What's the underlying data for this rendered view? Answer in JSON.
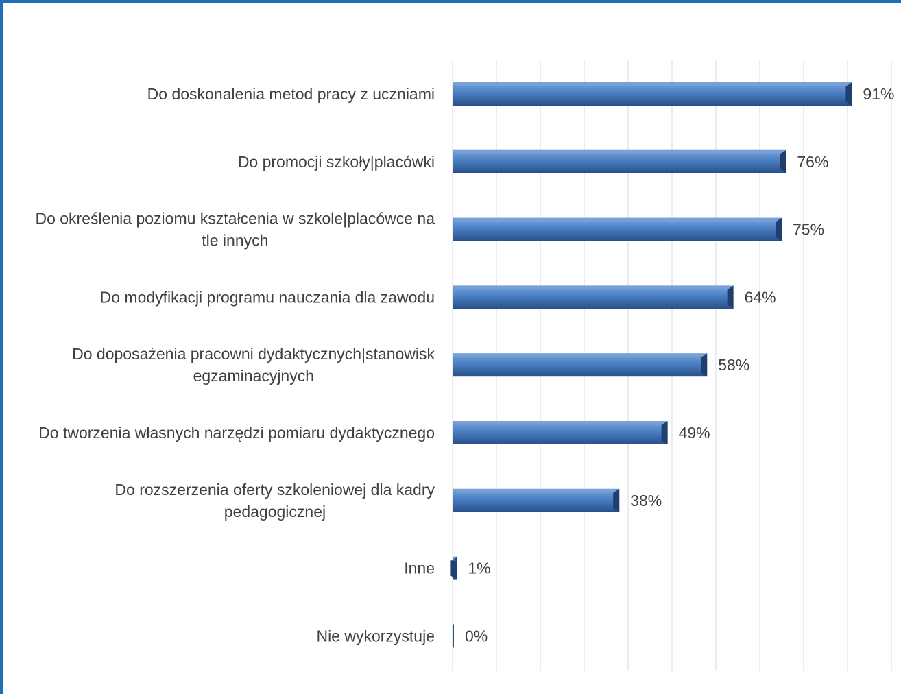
{
  "chart_data": {
    "type": "bar",
    "orientation": "horizontal",
    "categories": [
      [
        "Do doskonalenia metod pracy z uczniami"
      ],
      [
        "Do promocji szkoły|placówki"
      ],
      [
        "Do określenia poziomu kształcenia w szkole|placówce na",
        "tle innych"
      ],
      [
        "Do modyfikacji programu nauczania dla zawodu"
      ],
      [
        "Do doposażenia pracowni dydaktycznych|stanowisk",
        "egzaminacyjnych"
      ],
      [
        "Do tworzenia własnych narzędzi pomiaru dydaktycznego"
      ],
      [
        "Do rozszerzenia oferty szkoleniowej dla kadry",
        "pedagogicznej"
      ],
      [
        "Inne"
      ],
      [
        "Nie wykorzystuje"
      ]
    ],
    "values": [
      91,
      76,
      75,
      64,
      58,
      49,
      38,
      1,
      0
    ],
    "value_labels": [
      "91%",
      "76%",
      "75%",
      "64%",
      "58%",
      "49%",
      "38%",
      "1%",
      "0%"
    ],
    "title": "",
    "xlabel": "",
    "ylabel": "",
    "xlim": [
      0,
      100
    ],
    "grid": true,
    "legend": "none",
    "colors": {
      "bar_top": "#79a3d9",
      "bar_mid": "#4a7fc4",
      "bar_bottom": "#284f87",
      "bar_end": "#1f3f6f",
      "grid": "#d9d9d9",
      "text": "#404040",
      "frame": "#1f6fb6"
    }
  }
}
